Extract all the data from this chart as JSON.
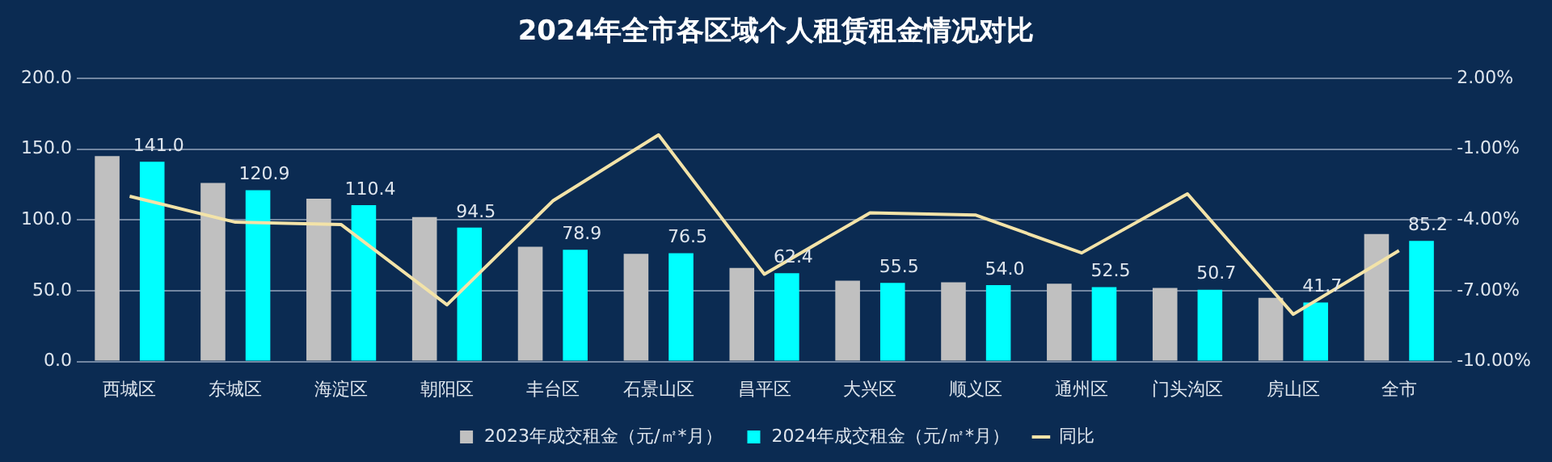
{
  "chart_data": {
    "type": "bar",
    "title": "2024年全市各区域个人租赁租金情况对比",
    "categories": [
      "西城区",
      "东城区",
      "海淀区",
      "朝阳区",
      "丰台区",
      "石景山区",
      "昌平区",
      "大兴区",
      "顺义区",
      "通州区",
      "门头沟区",
      "房山区",
      "全市"
    ],
    "series": [
      {
        "name": "2023年成交租金（元/㎡*月）",
        "color": "#c0c0c0",
        "values": [
          145,
          126,
          115,
          102,
          81,
          76,
          66,
          57,
          56,
          55,
          52,
          45,
          90
        ]
      },
      {
        "name": "2024年成交租金（元/㎡*月）",
        "color": "#00ffff",
        "values": [
          141.0,
          120.9,
          110.4,
          94.5,
          78.9,
          76.5,
          62.4,
          55.5,
          54.0,
          52.5,
          50.7,
          41.7,
          85.2
        ],
        "value_labels": [
          "141.0",
          "120.9",
          "110.4",
          "94.5",
          "78.9",
          "76.5",
          "62.4",
          "55.5",
          "54.0",
          "52.5",
          "50.7",
          "41.7",
          "85.2"
        ]
      },
      {
        "name": "同比",
        "type": "line",
        "axis": "y2",
        "color": "#f3e3a8",
        "values": [
          -3.0,
          -4.1,
          -4.2,
          -7.6,
          -3.2,
          -0.4,
          -6.3,
          -3.7,
          -3.8,
          -5.4,
          -2.9,
          -8.0,
          -5.3
        ]
      }
    ],
    "ylim": [
      0,
      200
    ],
    "yticks": [
      {
        "value": 0,
        "label": "0.0"
      },
      {
        "value": 50,
        "label": "50.0"
      },
      {
        "value": 100,
        "label": "100.0"
      },
      {
        "value": 150,
        "label": "150.0"
      },
      {
        "value": 200,
        "label": "200.0"
      }
    ],
    "y2lim": [
      -10,
      2
    ],
    "y2ticks": [
      {
        "value": -10,
        "label": "-10.00%"
      },
      {
        "value": -7,
        "label": "-7.00%"
      },
      {
        "value": -4,
        "label": "-4.00%"
      },
      {
        "value": -1,
        "label": "-1.00%"
      },
      {
        "value": 2,
        "label": "2.00%"
      }
    ],
    "grid": "y",
    "legend": "bottom",
    "marker": "none"
  }
}
